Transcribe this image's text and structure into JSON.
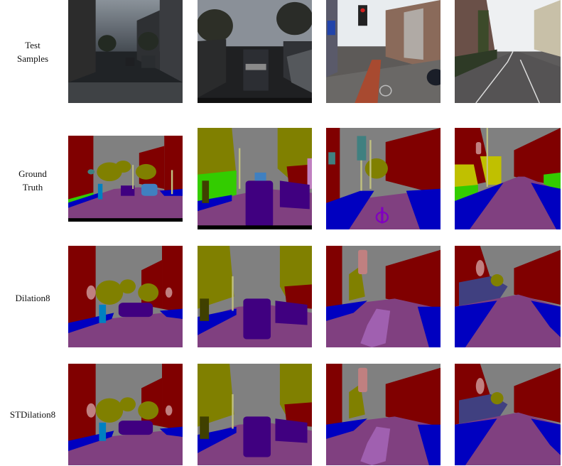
{
  "rows": [
    {
      "label_line1": "Test",
      "label_line2": "Samples"
    },
    {
      "label_line1": "Ground",
      "label_line2": "Truth"
    },
    {
      "label_line1": "Dilation8",
      "label_line2": ""
    },
    {
      "label_line1": "STDilation8",
      "label_line2": ""
    }
  ],
  "colors": {
    "sky": "#808080",
    "building": "#800000",
    "tree": "#808000",
    "road": "#804080",
    "sidewalk": "#0000c0",
    "car": "#400080",
    "pole": "#c0c080",
    "sign": "#c08080",
    "fence": "#404080",
    "pedestrian": "#404000",
    "bicyclist": "#0080c0",
    "grass": "#33cc00",
    "void": "#000000"
  }
}
